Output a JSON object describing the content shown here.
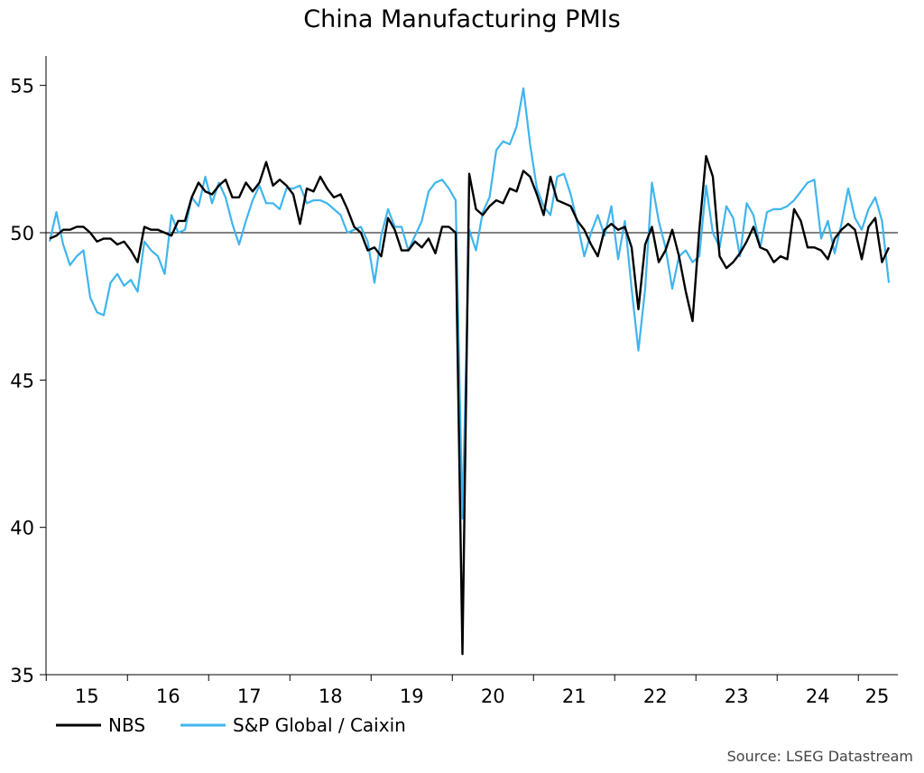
{
  "colors": {
    "nbs": "#000000",
    "caixin": "#3fb5ee",
    "axis": "#000000",
    "reference": "#000000"
  },
  "chart_data": {
    "type": "line",
    "title": "China Manufacturing PMIs",
    "source": "Source: LSEG Datastream",
    "xlabel": "",
    "ylabel": "",
    "ylim": [
      35,
      56
    ],
    "yticks": [
      35,
      40,
      45,
      50,
      55
    ],
    "x_start": "2015-01",
    "x_ticks": [
      "15",
      "16",
      "17",
      "18",
      "19",
      "20",
      "21",
      "22",
      "23",
      "24",
      "25"
    ],
    "reference_line": 50,
    "grid": false,
    "legend_position": "bottom-left",
    "series": [
      {
        "name": "NBS",
        "color": "#000000",
        "values": [
          49.8,
          49.9,
          50.1,
          50.1,
          50.2,
          50.2,
          50.0,
          49.7,
          49.8,
          49.8,
          49.6,
          49.7,
          49.4,
          49.0,
          50.2,
          50.1,
          50.1,
          50.0,
          49.9,
          50.4,
          50.4,
          51.2,
          51.7,
          51.4,
          51.3,
          51.6,
          51.8,
          51.2,
          51.2,
          51.7,
          51.4,
          51.7,
          52.4,
          51.6,
          51.8,
          51.6,
          51.3,
          50.3,
          51.5,
          51.4,
          51.9,
          51.5,
          51.2,
          51.3,
          50.8,
          50.2,
          50.0,
          49.4,
          49.5,
          49.2,
          50.5,
          50.1,
          49.4,
          49.4,
          49.7,
          49.5,
          49.8,
          49.3,
          50.2,
          50.2,
          50.0,
          35.7,
          52.0,
          50.8,
          50.6,
          50.9,
          51.1,
          51.0,
          51.5,
          51.4,
          52.1,
          51.9,
          51.3,
          50.6,
          51.9,
          51.1,
          51.0,
          50.9,
          50.4,
          50.1,
          49.6,
          49.2,
          50.1,
          50.3,
          50.1,
          50.2,
          49.5,
          47.4,
          49.6,
          50.2,
          49.0,
          49.4,
          50.1,
          49.2,
          48.0,
          47.0,
          50.1,
          52.6,
          51.9,
          49.2,
          48.8,
          49.0,
          49.3,
          49.7,
          50.2,
          49.5,
          49.4,
          49.0,
          49.2,
          49.1,
          50.8,
          50.4,
          49.5,
          49.5,
          49.4,
          49.1,
          49.8,
          50.1,
          50.3,
          50.1,
          49.1,
          50.2,
          50.5,
          49.0,
          49.5
        ]
      },
      {
        "name": "S&P Global / Caixin",
        "color": "#3fb5ee",
        "values": [
          49.7,
          50.7,
          49.6,
          48.9,
          49.2,
          49.4,
          47.8,
          47.3,
          47.2,
          48.3,
          48.6,
          48.2,
          48.4,
          48.0,
          49.7,
          49.4,
          49.2,
          48.6,
          50.6,
          50.0,
          50.1,
          51.2,
          50.9,
          51.9,
          51.0,
          51.7,
          51.2,
          50.3,
          49.6,
          50.4,
          51.1,
          51.6,
          51.0,
          51.0,
          50.8,
          51.5,
          51.5,
          51.6,
          51.0,
          51.1,
          51.1,
          51.0,
          50.8,
          50.6,
          50.0,
          50.1,
          50.2,
          49.7,
          48.3,
          49.9,
          50.8,
          50.2,
          50.2,
          49.4,
          49.9,
          50.4,
          51.4,
          51.7,
          51.8,
          51.5,
          51.1,
          40.3,
          50.1,
          49.4,
          50.7,
          51.2,
          52.8,
          53.1,
          53.0,
          53.6,
          54.9,
          53.0,
          51.5,
          50.9,
          50.6,
          51.9,
          52.0,
          51.3,
          50.3,
          49.2,
          50.0,
          50.6,
          49.9,
          50.9,
          49.1,
          50.4,
          48.1,
          46.0,
          48.1,
          51.7,
          50.4,
          49.5,
          48.1,
          49.2,
          49.4,
          49.0,
          49.2,
          51.6,
          50.0,
          49.5,
          50.9,
          50.5,
          49.2,
          51.0,
          50.6,
          49.5,
          50.7,
          50.8,
          50.8,
          50.9,
          51.1,
          51.4,
          51.7,
          51.8,
          49.8,
          50.4,
          49.3,
          50.3,
          51.5,
          50.5,
          50.1,
          50.8,
          51.2,
          50.4,
          48.3
        ]
      }
    ]
  }
}
